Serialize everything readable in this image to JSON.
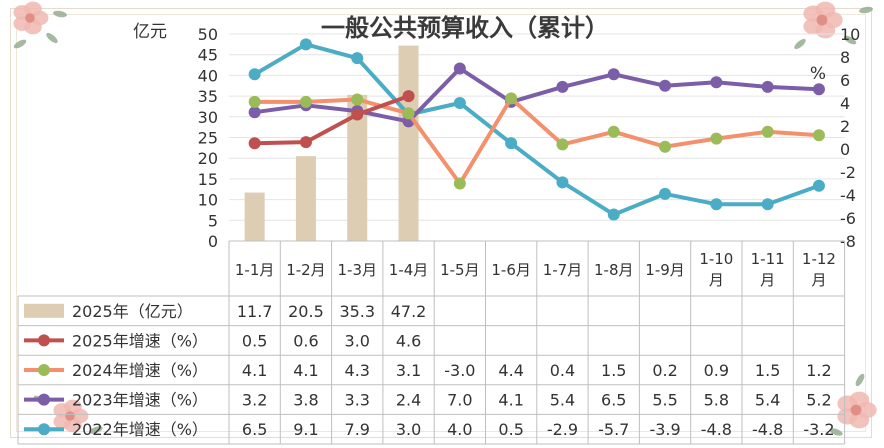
{
  "chart_data": {
    "type": "bar+line",
    "title": "一般公共预算收入（累计）",
    "left_axis": {
      "label": "亿元",
      "min": 0,
      "max": 50,
      "ticks": [
        0,
        5,
        10,
        15,
        20,
        25,
        30,
        35,
        40,
        45,
        50
      ]
    },
    "right_axis": {
      "label": "%",
      "min": -8,
      "max": 10,
      "ticks": [
        -8,
        -6,
        -4,
        -2,
        0,
        2,
        4,
        6,
        8,
        10
      ]
    },
    "categories": [
      "1-1月",
      "1-2月",
      "1-3月",
      "1-4月",
      "1-5月",
      "1-6月",
      "1-7月",
      "1-8月",
      "1-9月",
      "1-10月",
      "1-11月",
      "1-12月"
    ],
    "category_lines": [
      [
        "1-1月"
      ],
      [
        "1-2月"
      ],
      [
        "1-3月"
      ],
      [
        "1-4月"
      ],
      [
        "1-5月"
      ],
      [
        "1-6月"
      ],
      [
        "1-7月"
      ],
      [
        "1-8月"
      ],
      [
        "1-9月"
      ],
      [
        "1-10",
        "月"
      ],
      [
        "1-11",
        "月"
      ],
      [
        "1-12",
        "月"
      ]
    ],
    "series": [
      {
        "name": "2025年（亿元）",
        "kind": "bar",
        "axis": "left",
        "color": "#dccdb3",
        "values": [
          11.7,
          20.5,
          35.3,
          47.2,
          null,
          null,
          null,
          null,
          null,
          null,
          null,
          null
        ],
        "labels": [
          "11.7",
          "20.5",
          "35.3",
          "47.2",
          "",
          "",
          "",
          "",
          "",
          "",
          "",
          ""
        ]
      },
      {
        "name": "2025年增速（%）",
        "kind": "line",
        "axis": "right",
        "color": "#c0504d",
        "values": [
          0.5,
          0.6,
          3.0,
          4.6,
          null,
          null,
          null,
          null,
          null,
          null,
          null,
          null
        ],
        "labels": [
          "0.5",
          "0.6",
          "3.0",
          "4.6",
          "",
          "",
          "",
          "",
          "",
          "",
          "",
          ""
        ]
      },
      {
        "name": "2024年增速（%）",
        "kind": "line",
        "axis": "right",
        "color": "#f4906b",
        "marker_color": "#9bbb59",
        "values": [
          4.1,
          4.1,
          4.3,
          3.1,
          -3.0,
          4.4,
          0.4,
          1.5,
          0.2,
          0.9,
          1.5,
          1.2
        ],
        "labels": [
          "4.1",
          "4.1",
          "4.3",
          "3.1",
          "-3.0",
          "4.4",
          "0.4",
          "1.5",
          "0.2",
          "0.9",
          "1.5",
          "1.2"
        ]
      },
      {
        "name": "2023年增速（%）",
        "kind": "line",
        "axis": "right",
        "color": "#7b5ea7",
        "values": [
          3.2,
          3.8,
          3.3,
          2.4,
          7.0,
          4.1,
          5.4,
          6.5,
          5.5,
          5.8,
          5.4,
          5.2
        ],
        "labels": [
          "3.2",
          "3.8",
          "3.3",
          "2.4",
          "7.0",
          "4.1",
          "5.4",
          "6.5",
          "5.5",
          "5.8",
          "5.4",
          "5.2"
        ]
      },
      {
        "name": "2022年增速（%）",
        "kind": "line",
        "axis": "right",
        "color": "#4bacc6",
        "values": [
          6.5,
          9.1,
          7.9,
          3.0,
          4.0,
          0.5,
          -2.9,
          -5.7,
          -3.9,
          -4.8,
          -4.8,
          -3.2
        ],
        "labels": [
          "6.5",
          "9.1",
          "7.9",
          "3.0",
          "4.0",
          "0.5",
          "-2.9",
          "-5.7",
          "-3.9",
          "-4.8",
          "-4.8",
          "-3.2"
        ]
      }
    ],
    "grid": true,
    "legend": "data-table-left"
  },
  "decor": {
    "flower_color": "#f0b7b0",
    "leaf_color": "#8fa88b"
  }
}
